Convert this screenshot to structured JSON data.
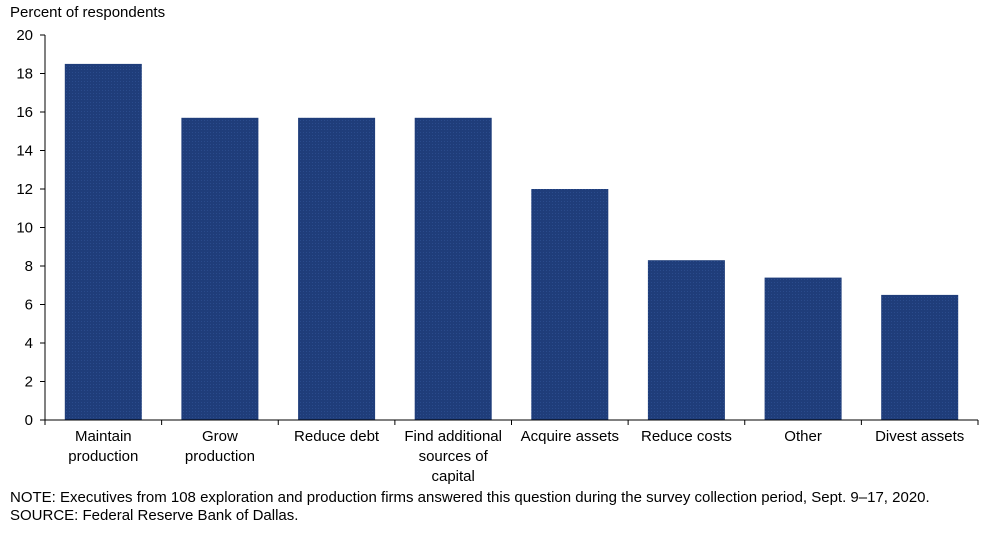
{
  "chart_data": {
    "type": "bar",
    "ylabel": "Percent of respondents",
    "categories": [
      "Maintain production",
      "Grow production",
      "Reduce debt",
      "Find additional sources of capital",
      "Acquire assets",
      "Reduce costs",
      "Other",
      "Divest assets"
    ],
    "category_lines": [
      [
        "Maintain",
        "production"
      ],
      [
        "Grow",
        "production"
      ],
      [
        "Reduce debt"
      ],
      [
        "Find additional",
        "sources of",
        "capital"
      ],
      [
        "Acquire assets"
      ],
      [
        "Reduce costs"
      ],
      [
        "Other"
      ],
      [
        "Divest assets"
      ]
    ],
    "values": [
      18.5,
      15.7,
      15.7,
      15.7,
      12.0,
      8.3,
      7.4,
      6.5
    ],
    "ylim": [
      0,
      20
    ],
    "yticks": [
      0,
      2,
      4,
      6,
      8,
      10,
      12,
      14,
      16,
      18,
      20
    ],
    "grid": false,
    "bar_color": "#1f3d7a"
  },
  "footer": {
    "note": "NOTE: Executives from 108 exploration and production firms answered this question during the survey collection period, Sept. 9–17, 2020.",
    "source": "SOURCE: Federal Reserve Bank of Dallas."
  }
}
